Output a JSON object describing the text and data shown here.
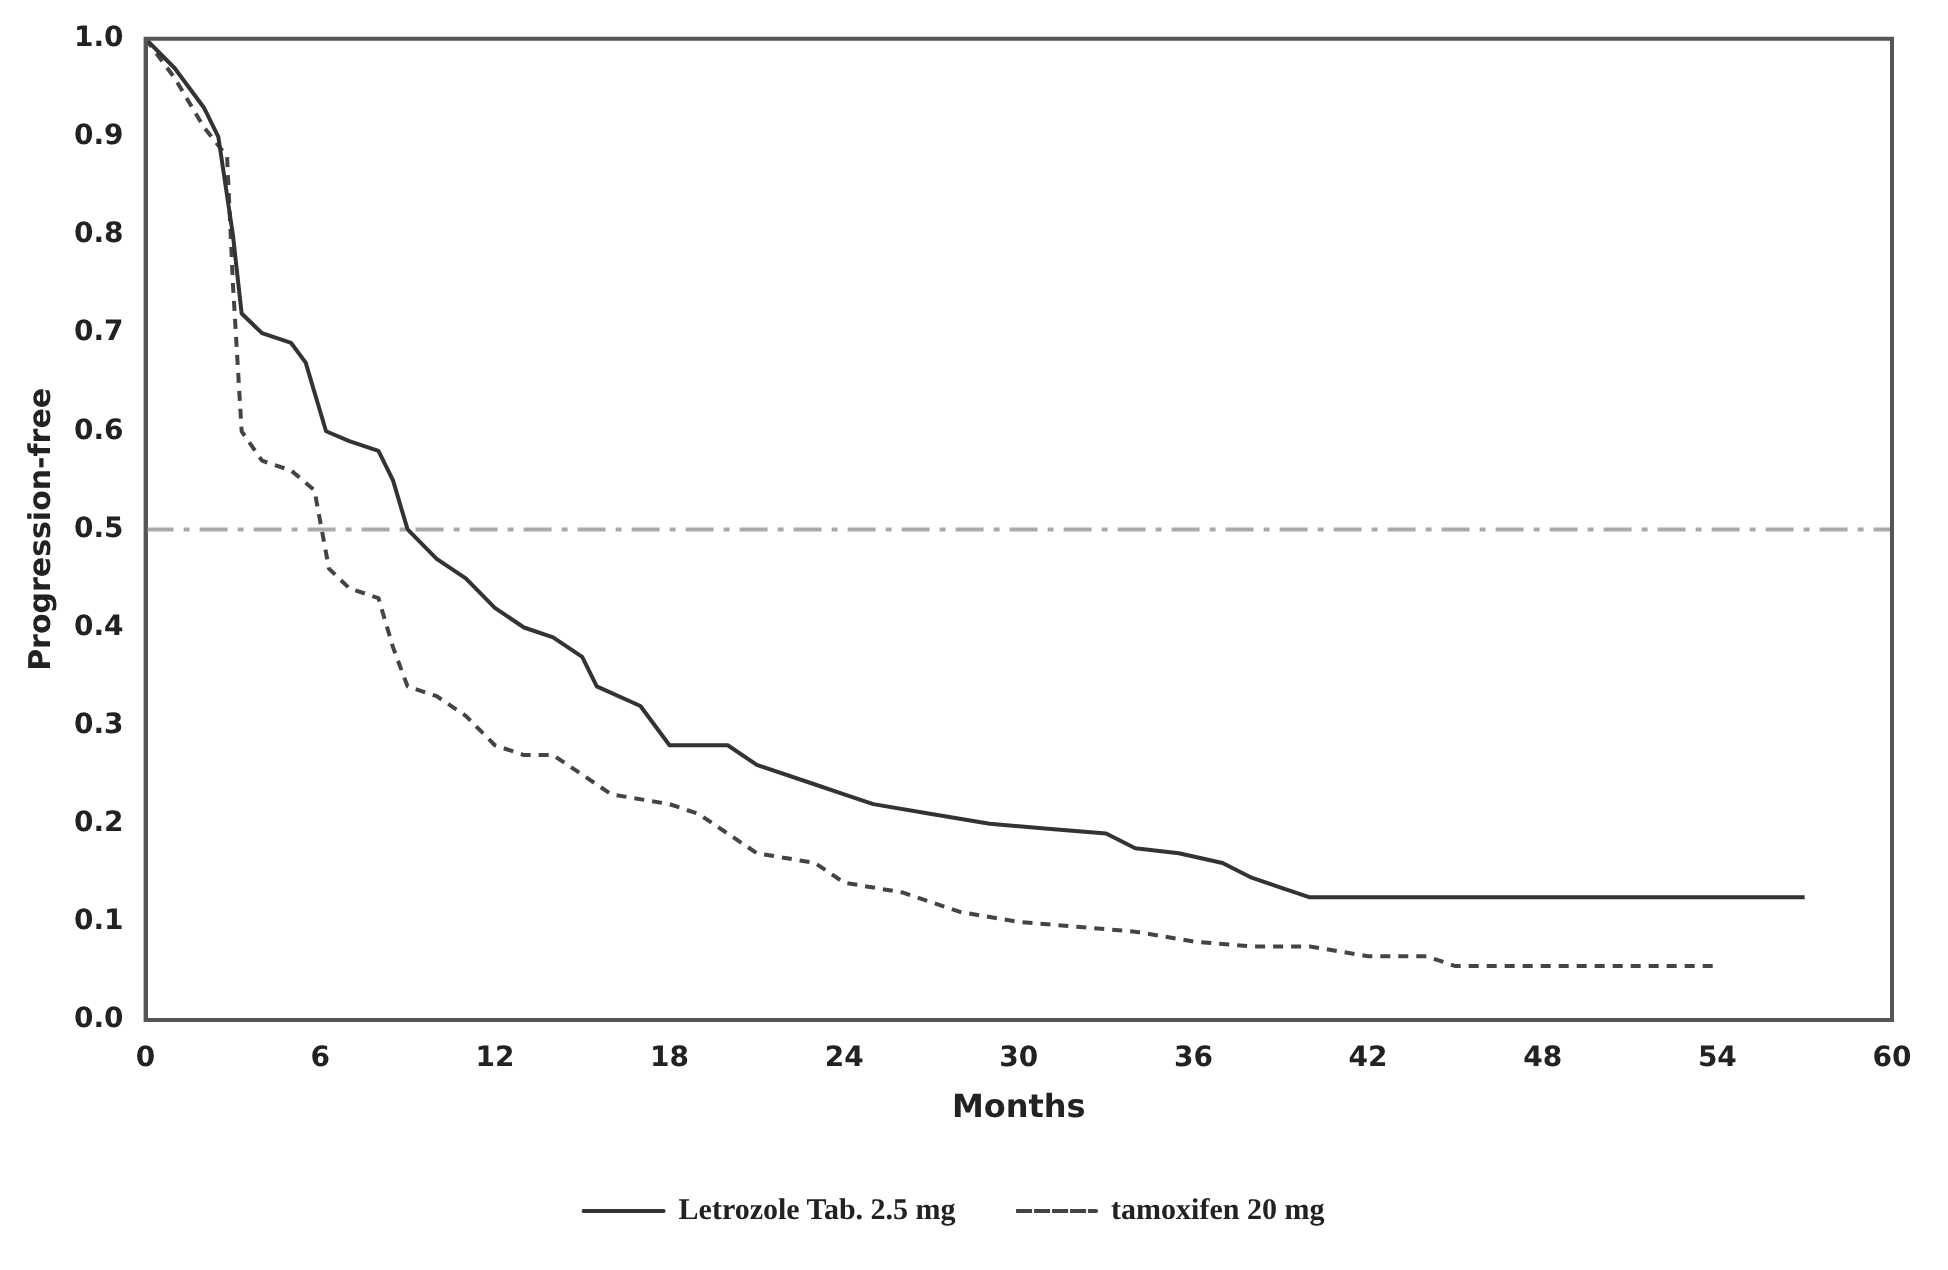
{
  "chart_data": {
    "type": "line",
    "xlabel": "Months",
    "ylabel": "Progression-free",
    "xlim": [
      0,
      60
    ],
    "xticks": [
      0,
      6,
      12,
      18,
      24,
      30,
      36,
      42,
      48,
      54,
      60
    ],
    "ylim": [
      0,
      1
    ],
    "yticks": [
      {
        "value": 0,
        "label": "0.0"
      },
      0.1,
      0.2,
      0.3,
      0.4,
      0.5,
      0.6,
      0.7,
      0.8,
      0.9,
      {
        "value": 1,
        "label": "1.0"
      }
    ],
    "grid": false,
    "legend": "bottom",
    "marker": "none",
    "ref_lines": [
      {
        "axis": "y",
        "value": 0.5,
        "color": "#aaaaaa",
        "line_style": "dashdot"
      }
    ],
    "series": [
      {
        "name": "Letrozole Tab. 2.5 mg",
        "color": "#333333",
        "line_style": "solid",
        "x": [
          0,
          1,
          2,
          2.5,
          3,
          3.3,
          4,
          5,
          5.5,
          6.2,
          7,
          8,
          8.5,
          9,
          10,
          11,
          12,
          13,
          14,
          15,
          15.5,
          17,
          18,
          20,
          21,
          23,
          24,
          25,
          27,
          29,
          31,
          33,
          34,
          35.5,
          37,
          38,
          39,
          40,
          57
        ],
        "values": [
          1.0,
          0.97,
          0.93,
          0.9,
          0.8,
          0.72,
          0.7,
          0.69,
          0.67,
          0.6,
          0.59,
          0.58,
          0.55,
          0.5,
          0.47,
          0.45,
          0.42,
          0.4,
          0.39,
          0.37,
          0.34,
          0.32,
          0.28,
          0.28,
          0.26,
          0.24,
          0.23,
          0.22,
          0.21,
          0.2,
          0.195,
          0.19,
          0.175,
          0.17,
          0.16,
          0.145,
          0.135,
          0.125,
          0.125
        ]
      },
      {
        "name": "tamoxifen 20 mg",
        "color": "#444444",
        "line_style": "dashed",
        "x": [
          0,
          1,
          2,
          2.8,
          3,
          3.3,
          4,
          5,
          5.8,
          6.3,
          7,
          8,
          8.5,
          9,
          10,
          11,
          12,
          13,
          14,
          15,
          16,
          18,
          19,
          20,
          21,
          23,
          24,
          26,
          27,
          28,
          30,
          32,
          34,
          36,
          38,
          40,
          42,
          44,
          45,
          54
        ],
        "values": [
          1.0,
          0.96,
          0.91,
          0.88,
          0.75,
          0.6,
          0.57,
          0.56,
          0.54,
          0.46,
          0.44,
          0.43,
          0.38,
          0.34,
          0.33,
          0.31,
          0.28,
          0.27,
          0.27,
          0.25,
          0.23,
          0.22,
          0.21,
          0.19,
          0.17,
          0.16,
          0.14,
          0.13,
          0.12,
          0.11,
          0.1,
          0.095,
          0.09,
          0.08,
          0.075,
          0.075,
          0.065,
          0.065,
          0.055,
          0.055
        ]
      }
    ]
  }
}
